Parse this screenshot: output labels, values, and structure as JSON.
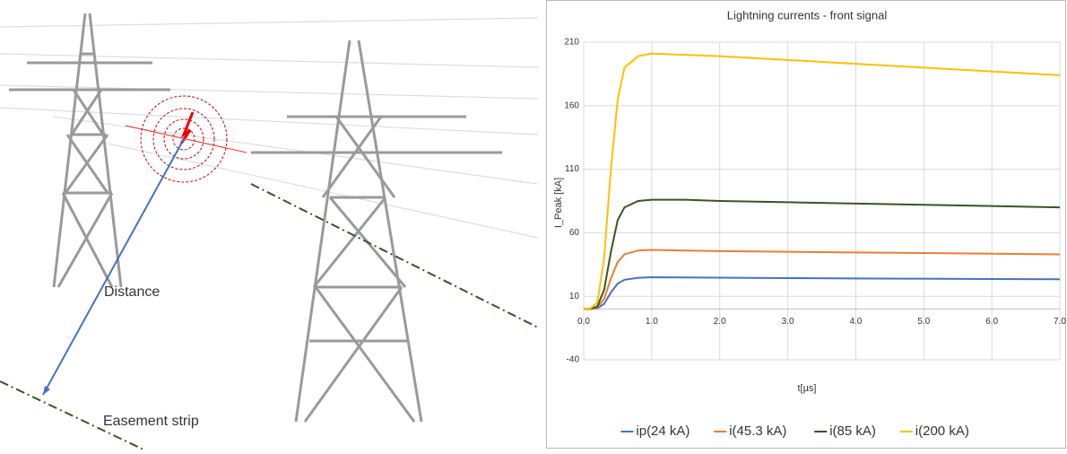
{
  "illustration": {
    "distance_label": "Distance",
    "easement_label": "Easement strip"
  },
  "chart_data": {
    "type": "line",
    "title": "Lightning currents - front signal",
    "x_label": "t[µs]",
    "y_label": "I_Peak [kA]",
    "x": [
      0,
      0.1,
      0.2,
      0.3,
      0.4,
      0.5,
      0.6,
      0.8,
      1.0,
      1.5,
      2,
      3,
      4,
      5,
      6,
      7
    ],
    "series": [
      {
        "name": "ip(24 kA)",
        "color": "#4472c4",
        "values": [
          0,
          0.1,
          0.5,
          4,
          13,
          20,
          23,
          24.5,
          25,
          24.8,
          24.6,
          24.3,
          24,
          23.8,
          23.6,
          23.4
        ]
      },
      {
        "name": "i(45.3 kA)",
        "color": "#ed7d31",
        "values": [
          0,
          0.1,
          1,
          8,
          24,
          37,
          43,
          46,
          46.5,
          46,
          45.5,
          45,
          44.5,
          44,
          43.5,
          43
        ]
      },
      {
        "name": "i(85 kA)",
        "color": "#375623",
        "values": [
          0,
          0.2,
          2,
          15,
          45,
          70,
          80,
          85,
          86,
          86,
          85,
          84,
          83,
          82,
          81,
          80
        ]
      },
      {
        "name": "i(200 kA)",
        "color": "#ffc000",
        "values": [
          0,
          0.5,
          5,
          40,
          110,
          165,
          190,
          199,
          201,
          200,
          199,
          196,
          193,
          190,
          187,
          184
        ]
      }
    ],
    "xlim": [
      0,
      7
    ],
    "xticks": [
      {
        "value": 0,
        "label": "0.0"
      },
      {
        "value": 1,
        "label": "1.0"
      },
      {
        "value": 2,
        "label": "2.0"
      },
      {
        "value": 3,
        "label": "3.0"
      },
      {
        "value": 4,
        "label": "4.0"
      },
      {
        "value": 5,
        "label": "5.0"
      },
      {
        "value": 6,
        "label": "6.0"
      },
      {
        "value": 7,
        "label": "7.0"
      }
    ],
    "ylim": [
      -40,
      210
    ],
    "yticks": [
      -40,
      10,
      60,
      110,
      160,
      210
    ],
    "grid": true,
    "legend": "bottom"
  }
}
